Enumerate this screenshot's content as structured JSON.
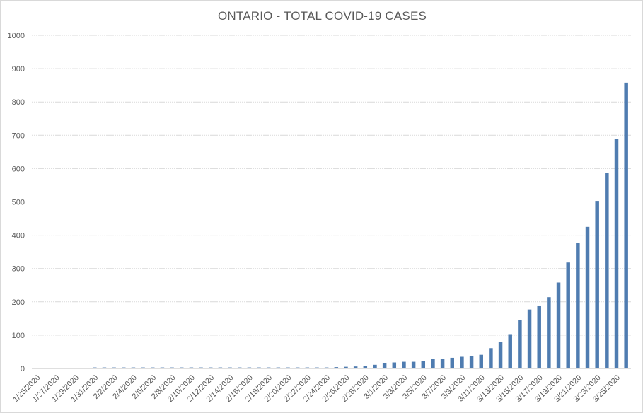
{
  "chart_data": {
    "type": "bar",
    "title": "ONTARIO - TOTAL COVID-19 CASES",
    "xlabel": "",
    "ylabel": "",
    "ylim": [
      0,
      1000
    ],
    "yticks": [
      0,
      100,
      200,
      300,
      400,
      500,
      600,
      700,
      800,
      900,
      1000
    ],
    "grid": true,
    "legend": "none",
    "bar_color": "#4f7cb0",
    "categories": [
      "1/25/2020",
      "1/26/2020",
      "1/27/2020",
      "1/28/2020",
      "1/29/2020",
      "1/30/2020",
      "1/31/2020",
      "2/1/2020",
      "2/2/2020",
      "2/3/2020",
      "2/4/2020",
      "2/5/2020",
      "2/6/2020",
      "2/7/2020",
      "2/8/2020",
      "2/9/2020",
      "2/10/2020",
      "2/11/2020",
      "2/12/2020",
      "2/13/2020",
      "2/14/2020",
      "2/15/2020",
      "2/16/2020",
      "2/17/2020",
      "2/18/2020",
      "2/19/2020",
      "2/20/2020",
      "2/21/2020",
      "2/22/2020",
      "2/23/2020",
      "2/24/2020",
      "2/25/2020",
      "2/26/2020",
      "2/27/2020",
      "2/28/2020",
      "2/29/2020",
      "3/1/2020",
      "3/2/2020",
      "3/3/2020",
      "3/4/2020",
      "3/5/2020",
      "3/6/2020",
      "3/7/2020",
      "3/8/2020",
      "3/9/2020",
      "3/10/2020",
      "3/11/2020",
      "3/12/2020",
      "3/13/2020",
      "3/14/2020",
      "3/15/2020",
      "3/16/2020",
      "3/17/2020",
      "3/18/2020",
      "3/19/2020",
      "3/20/2020",
      "3/21/2020",
      "3/22/2020",
      "3/23/2020",
      "3/24/2020",
      "3/25/2020",
      "3/26/2020"
    ],
    "x_tick_labels": [
      "1/25/2020",
      "1/27/2020",
      "1/29/2020",
      "1/31/2020",
      "2/2/2020",
      "2/4/2020",
      "2/6/2020",
      "2/8/2020",
      "2/10/2020",
      "2/12/2020",
      "2/14/2020",
      "2/16/2020",
      "2/18/2020",
      "2/20/2020",
      "2/22/2020",
      "2/24/2020",
      "2/26/2020",
      "2/28/2020",
      "3/1/2020",
      "3/3/2020",
      "3/5/2020",
      "3/7/2020",
      "3/9/2020",
      "3/11/2020",
      "3/13/2020",
      "3/15/2020",
      "3/17/2020",
      "3/19/2020",
      "3/21/2020",
      "3/23/2020",
      "3/25/2020"
    ],
    "values": [
      0,
      0,
      0,
      0,
      0,
      0,
      3,
      3,
      3,
      3,
      3,
      3,
      3,
      3,
      3,
      3,
      3,
      3,
      3,
      3,
      3,
      3,
      3,
      3,
      3,
      3,
      3,
      3,
      3,
      3,
      3,
      4,
      5,
      6,
      8,
      11,
      15,
      18,
      20,
      20,
      22,
      28,
      28,
      32,
      35,
      37,
      41,
      61,
      79,
      103,
      145,
      177,
      189,
      214,
      258,
      318,
      377,
      425,
      503,
      588,
      688,
      858
    ]
  }
}
